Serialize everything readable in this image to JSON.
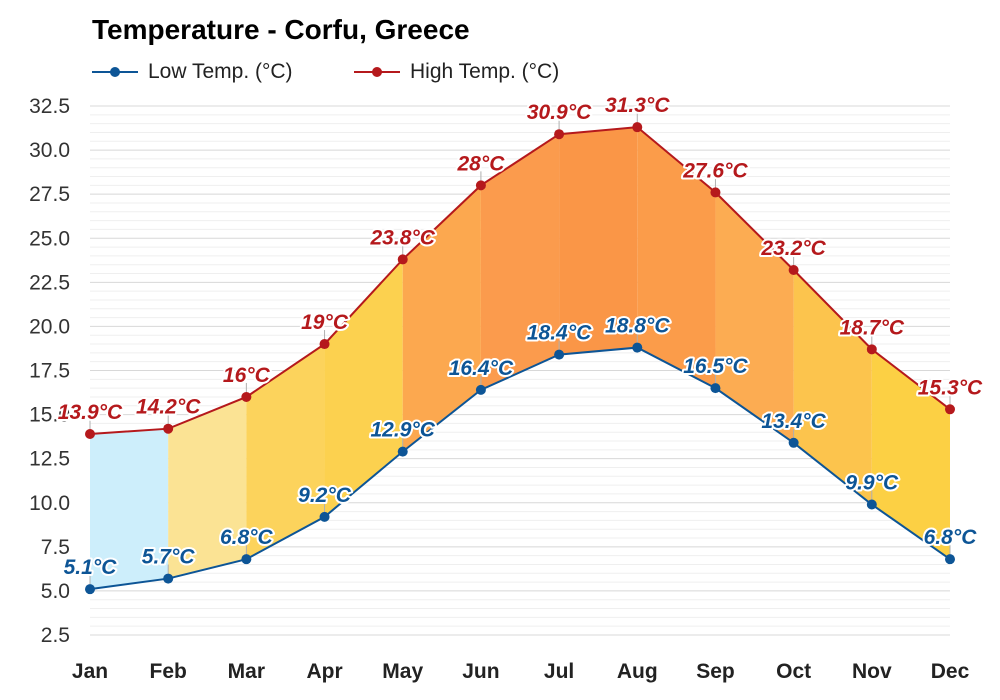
{
  "chart_data": {
    "type": "line",
    "title": "Temperature - Corfu, Greece",
    "categories": [
      "Jan",
      "Feb",
      "Mar",
      "Apr",
      "May",
      "Jun",
      "Jul",
      "Aug",
      "Sep",
      "Oct",
      "Nov",
      "Dec"
    ],
    "series": [
      {
        "name": "Low Temp. (°C)",
        "color": "#0d5596",
        "values": [
          5.1,
          5.7,
          6.8,
          9.2,
          12.9,
          16.4,
          18.4,
          18.8,
          16.5,
          13.4,
          9.9,
          6.8
        ],
        "labels": [
          "5.1°C",
          "5.7°C",
          "6.8°C",
          "9.2°C",
          "12.9°C",
          "16.4°C",
          "18.4°C",
          "18.8°C",
          "16.5°C",
          "13.4°C",
          "9.9°C",
          "6.8°C"
        ]
      },
      {
        "name": "High Temp. (°C)",
        "color": "#b5191c",
        "values": [
          13.9,
          14.2,
          16,
          19,
          23.8,
          28,
          30.9,
          31.3,
          27.6,
          23.2,
          18.7,
          15.3
        ],
        "labels": [
          "13.9°C",
          "14.2°C",
          "16°C",
          "19°C",
          "23.8°C",
          "28°C",
          "30.9°C",
          "31.3°C",
          "27.6°C",
          "23.2°C",
          "18.7°C",
          "15.3°C"
        ]
      }
    ],
    "band_colors": [
      "#cdeefb",
      "#fbe394",
      "#fcd35c",
      "#fcd14f",
      "#fca84f",
      "#fb9b4d",
      "#fa9647",
      "#fb9c4a",
      "#fcac52",
      "#fcc44d",
      "#fcd044",
      "#fbe394"
    ],
    "ylim": [
      2.5,
      32.5
    ],
    "yticks": [
      "2.5",
      "5.0",
      "7.5",
      "10.0",
      "12.5",
      "15.0",
      "17.5",
      "20.0",
      "22.5",
      "25.0",
      "27.5",
      "30.0",
      "32.5"
    ],
    "legend_position": "top-left",
    "grid": true,
    "xlabel": "",
    "ylabel": ""
  }
}
